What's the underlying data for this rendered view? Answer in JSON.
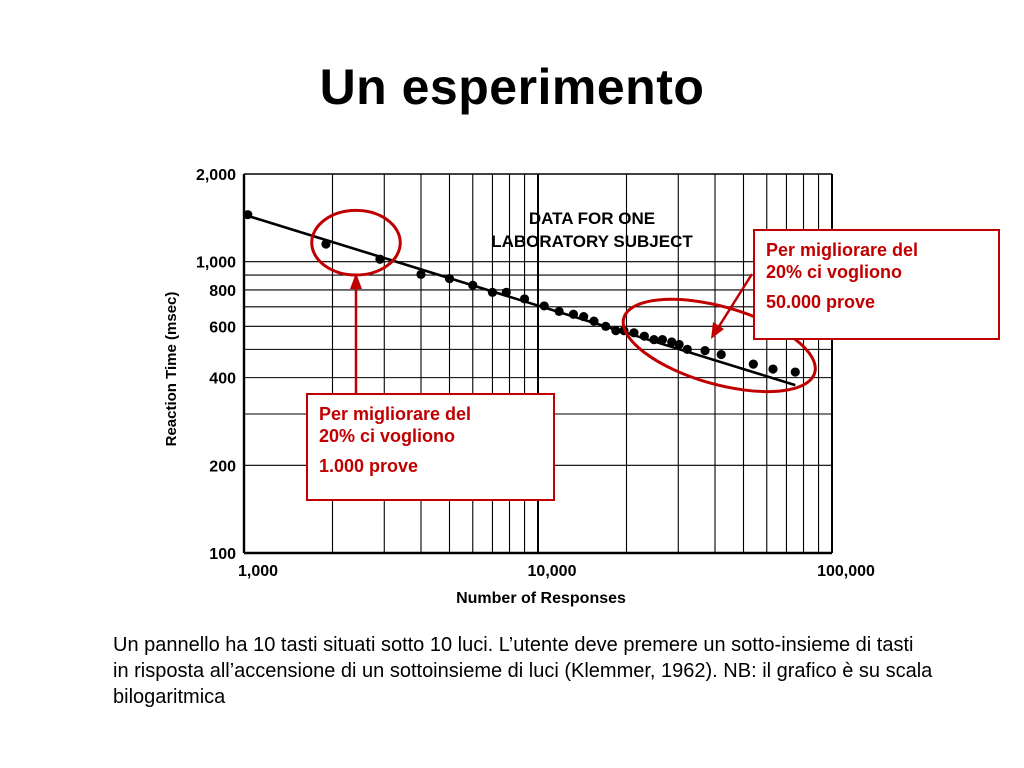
{
  "slide": {
    "title": "Un esperimento",
    "caption": "Un pannello ha 10 tasti situati sotto 10 luci. L’utente deve premere un sotto-insieme di tasti in risposta all’accensione di un sottoinsieme di luci (Klemmer, 1962). NB: il grafico è su scala bilogaritmica"
  },
  "callouts": {
    "right": {
      "line1": "Per migliorare del",
      "line2": "20% ci vogliono",
      "line3": "50.000 prove"
    },
    "left": {
      "line1": "Per migliorare del",
      "line2": "20% ci vogliono",
      "line3": "1.000 prove"
    }
  },
  "colors": {
    "annotation": "#c00000",
    "ink": "#000000",
    "grid": "#000000"
  },
  "chart_data": {
    "type": "scatter",
    "xscale": "log",
    "yscale": "log",
    "xlim": [
      1000,
      100000
    ],
    "ylim": [
      100,
      2000
    ],
    "x_tick_labels": [
      {
        "value": 1000,
        "label": "1,000"
      },
      {
        "value": 10000,
        "label": "10,000"
      },
      {
        "value": 100000,
        "label": "100,000"
      }
    ],
    "y_tick_labels": [
      {
        "value": 2000,
        "label": "2,000"
      },
      {
        "value": 1000,
        "label": "1,000"
      },
      {
        "value": 800,
        "label": "800"
      },
      {
        "value": 600,
        "label": "600"
      },
      {
        "value": 400,
        "label": "400"
      },
      {
        "value": 200,
        "label": "200"
      },
      {
        "value": 100,
        "label": "100"
      }
    ],
    "xlabel": "Number of Responses",
    "ylabel": "Reaction Time (msec)",
    "annotation": [
      "DATA FOR ONE",
      "LABORATORY SUBJECT"
    ],
    "grid": true,
    "points": [
      {
        "x": 1030,
        "y": 1450
      },
      {
        "x": 1900,
        "y": 1150
      },
      {
        "x": 2900,
        "y": 1020
      },
      {
        "x": 4000,
        "y": 905
      },
      {
        "x": 5000,
        "y": 875
      },
      {
        "x": 6000,
        "y": 830
      },
      {
        "x": 7000,
        "y": 785
      },
      {
        "x": 7800,
        "y": 785
      },
      {
        "x": 9000,
        "y": 745
      },
      {
        "x": 10500,
        "y": 705
      },
      {
        "x": 11800,
        "y": 675
      },
      {
        "x": 13200,
        "y": 660
      },
      {
        "x": 14300,
        "y": 648
      },
      {
        "x": 15500,
        "y": 625
      },
      {
        "x": 17000,
        "y": 600
      },
      {
        "x": 18400,
        "y": 580
      },
      {
        "x": 19600,
        "y": 580
      },
      {
        "x": 21200,
        "y": 570
      },
      {
        "x": 23000,
        "y": 555
      },
      {
        "x": 24800,
        "y": 540
      },
      {
        "x": 26500,
        "y": 540
      },
      {
        "x": 28500,
        "y": 530
      },
      {
        "x": 30200,
        "y": 520
      },
      {
        "x": 32200,
        "y": 500
      },
      {
        "x": 37000,
        "y": 495
      },
      {
        "x": 42000,
        "y": 480
      },
      {
        "x": 54000,
        "y": 445
      },
      {
        "x": 63000,
        "y": 428
      },
      {
        "x": 75000,
        "y": 418
      }
    ],
    "trend_line": [
      {
        "x": 1000,
        "y": 1450
      },
      {
        "x": 75000,
        "y": 377
      }
    ],
    "highlight_circles": [
      {
        "x_range": [
          1700,
          3400
        ],
        "y_range": [
          900,
          1500
        ]
      },
      {
        "x_range": [
          19000,
          90000
        ],
        "y_range": [
          380,
          700
        ]
      }
    ]
  }
}
